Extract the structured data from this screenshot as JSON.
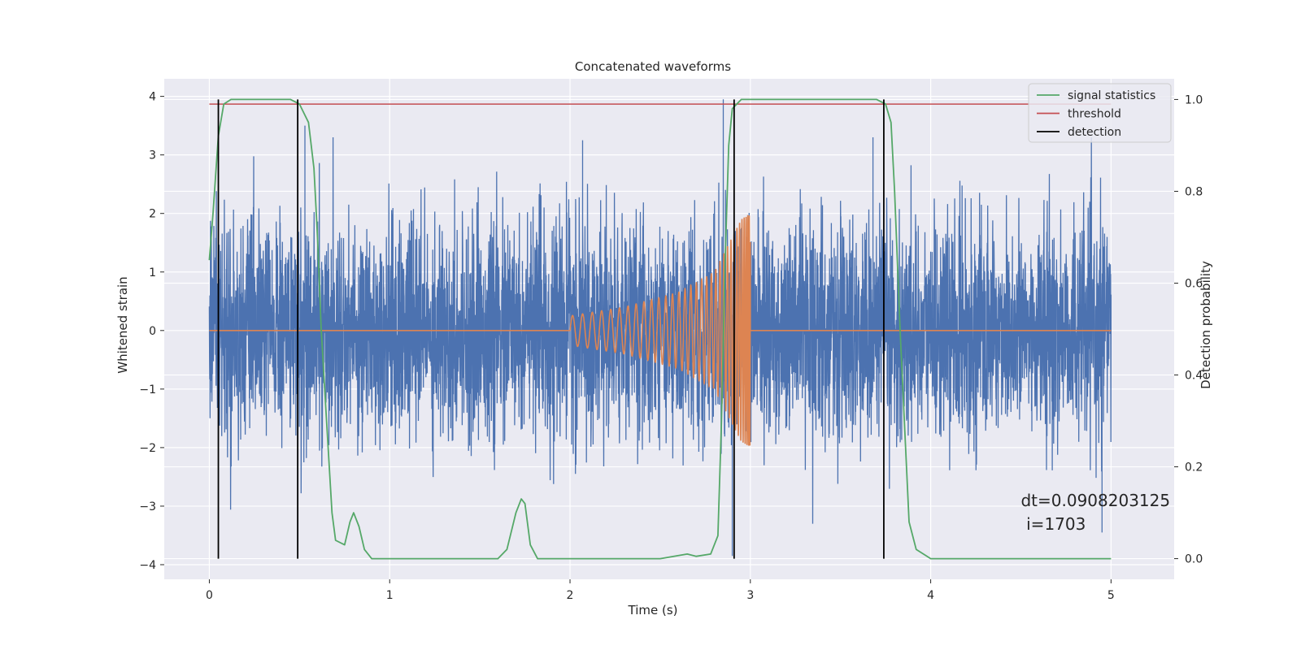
{
  "chart_data": {
    "type": "line",
    "title": "Concatenated waveforms",
    "xlabel": "Time (s)",
    "ylabel": "Whitened strain",
    "y2label": "Detection probability",
    "xlim": [
      -0.25,
      5.35
    ],
    "ylim": [
      -4.25,
      4.3
    ],
    "y2lim": [
      -0.045,
      1.045
    ],
    "xticks": [
      0,
      1,
      2,
      3,
      4,
      5
    ],
    "xtick_labels": [
      "0",
      "1",
      "2",
      "3",
      "4",
      "5"
    ],
    "yticks": [
      -4,
      -3,
      -2,
      -1,
      0,
      1,
      2,
      3,
      4
    ],
    "ytick_labels": [
      "−4",
      "−3",
      "−2",
      "−1",
      "0",
      "1",
      "2",
      "3",
      "4"
    ],
    "y2ticks": [
      0,
      0.2,
      0.4,
      0.6,
      0.8,
      1.0
    ],
    "y2tick_labels": [
      "0.0",
      "0.2",
      "0.4",
      "0.6",
      "0.8",
      "1.0"
    ],
    "grid": true,
    "legend_position": "top-right",
    "series": [
      {
        "name": "",
        "kind": "noise",
        "axis": "left",
        "color": "#4c72b0",
        "x_range": [
          0,
          5
        ],
        "description_sigma": 0.9,
        "peaks": [
          {
            "x": 0.53,
            "y": 3.5
          },
          {
            "x": 2.85,
            "y": 3.95
          },
          {
            "x": 2.9,
            "y": -3.85
          },
          {
            "x": 4.95,
            "y": -3.45
          },
          {
            "x": 3.68,
            "y": 3.3
          },
          {
            "x": 2.07,
            "y": 3.25
          }
        ]
      },
      {
        "name": "",
        "kind": "chirp",
        "axis": "left",
        "color": "#dd8452",
        "x": [
          0,
          2.0,
          2.3,
          2.6,
          2.8,
          2.95,
          3.0,
          5.0
        ],
        "envelope": [
          0,
          0.25,
          0.4,
          0.65,
          1.0,
          1.9,
          2.0,
          0
        ]
      },
      {
        "name": "signal statistics",
        "axis": "right",
        "color": "#55a868",
        "x": [
          0,
          0.02,
          0.05,
          0.08,
          0.12,
          0.2,
          0.45,
          0.5,
          0.55,
          0.58,
          0.6,
          0.62,
          0.65,
          0.68,
          0.7,
          0.75,
          0.78,
          0.8,
          0.83,
          0.86,
          0.9,
          1.0,
          1.6,
          1.65,
          1.7,
          1.73,
          1.75,
          1.78,
          1.82,
          1.9,
          2.5,
          2.65,
          2.7,
          2.78,
          2.82,
          2.84,
          2.86,
          2.88,
          2.9,
          2.95,
          3.0,
          3.7,
          3.75,
          3.78,
          3.8,
          3.83,
          3.86,
          3.88,
          3.92,
          4.0,
          5.0
        ],
        "y": [
          0.65,
          0.75,
          0.92,
          0.99,
          1.0,
          1.0,
          1.0,
          0.99,
          0.95,
          0.85,
          0.7,
          0.5,
          0.3,
          0.1,
          0.04,
          0.03,
          0.08,
          0.1,
          0.07,
          0.02,
          0.0,
          0.0,
          0.0,
          0.02,
          0.1,
          0.13,
          0.12,
          0.03,
          0.0,
          0.0,
          0.0,
          0.01,
          0.005,
          0.01,
          0.05,
          0.3,
          0.65,
          0.9,
          0.98,
          1.0,
          1.0,
          1.0,
          0.99,
          0.95,
          0.8,
          0.5,
          0.25,
          0.08,
          0.02,
          0.0,
          0.0
        ]
      },
      {
        "name": "threshold",
        "axis": "right",
        "color": "#c44e52",
        "x": [
          0,
          5
        ],
        "y": [
          0.99,
          0.99
        ]
      },
      {
        "name": "detection",
        "axis": "right",
        "color": "#000000",
        "kind": "vlines",
        "x": [
          0.05,
          0.49,
          2.91,
          3.74
        ],
        "ymin": 0,
        "ymax": 1
      }
    ],
    "annotations": [
      {
        "text": "dt=0.0908203125",
        "x": 4.5,
        "y": -3.0
      },
      {
        "text": "i=1703",
        "x": 4.53,
        "y": -3.4
      }
    ]
  }
}
